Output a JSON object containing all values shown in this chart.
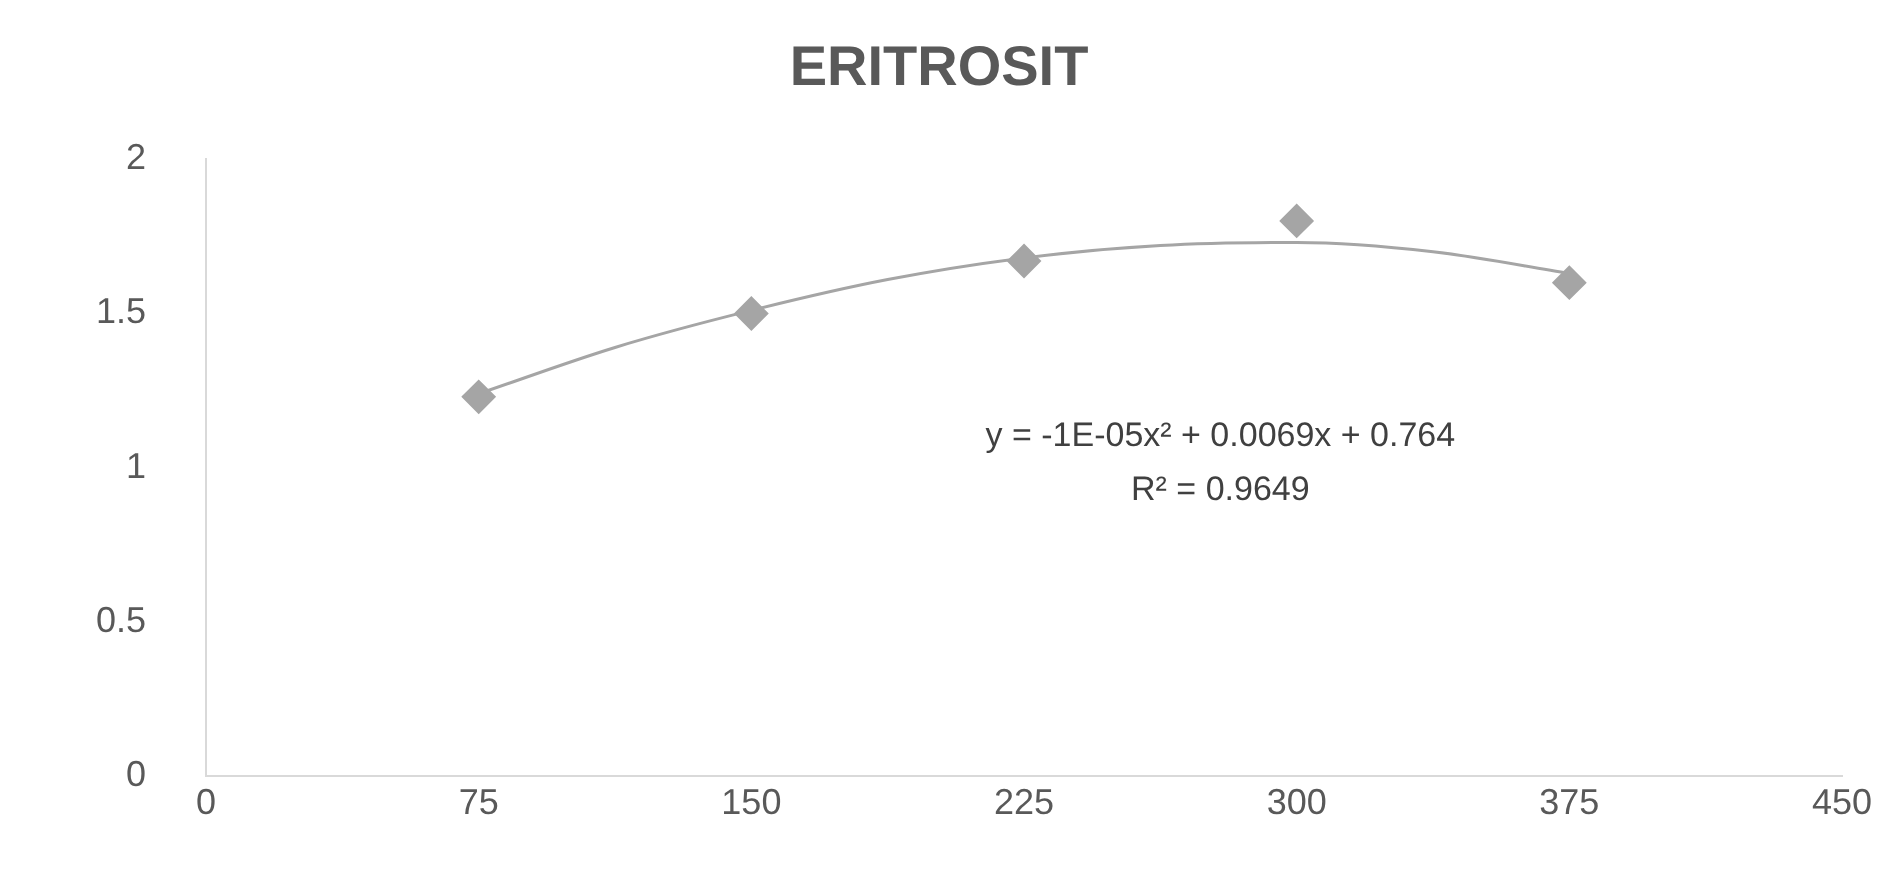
{
  "chart_data": {
    "type": "scatter",
    "title": "ERITROSIT",
    "marker": "diamond",
    "grid": false,
    "legend": false,
    "xlim": [
      0,
      450
    ],
    "xticks": [
      0,
      75,
      150,
      225,
      300,
      375,
      450
    ],
    "ylim": [
      0,
      2
    ],
    "yticks": [
      0,
      0.5,
      1,
      1.5,
      2
    ],
    "series": [
      {
        "color": "#a5a5a5",
        "x": [
          75,
          150,
          225,
          300,
          375
        ],
        "values": [
          1.23,
          1.5,
          1.67,
          1.8,
          1.6
        ]
      },
      {
        "type": "line",
        "color": "#a5a5a5",
        "marker": "none",
        "x": [
          75,
          112.5,
          150,
          187.5,
          225,
          262.5,
          300,
          337.5,
          375
        ],
        "values": [
          1.24,
          1.39,
          1.51,
          1.61,
          1.68,
          1.72,
          1.73,
          1.7,
          1.63
        ]
      }
    ],
    "annotations": [
      "y = -1E-05x² + 0.0069x + 0.764",
      "R² = 0.9649"
    ]
  }
}
